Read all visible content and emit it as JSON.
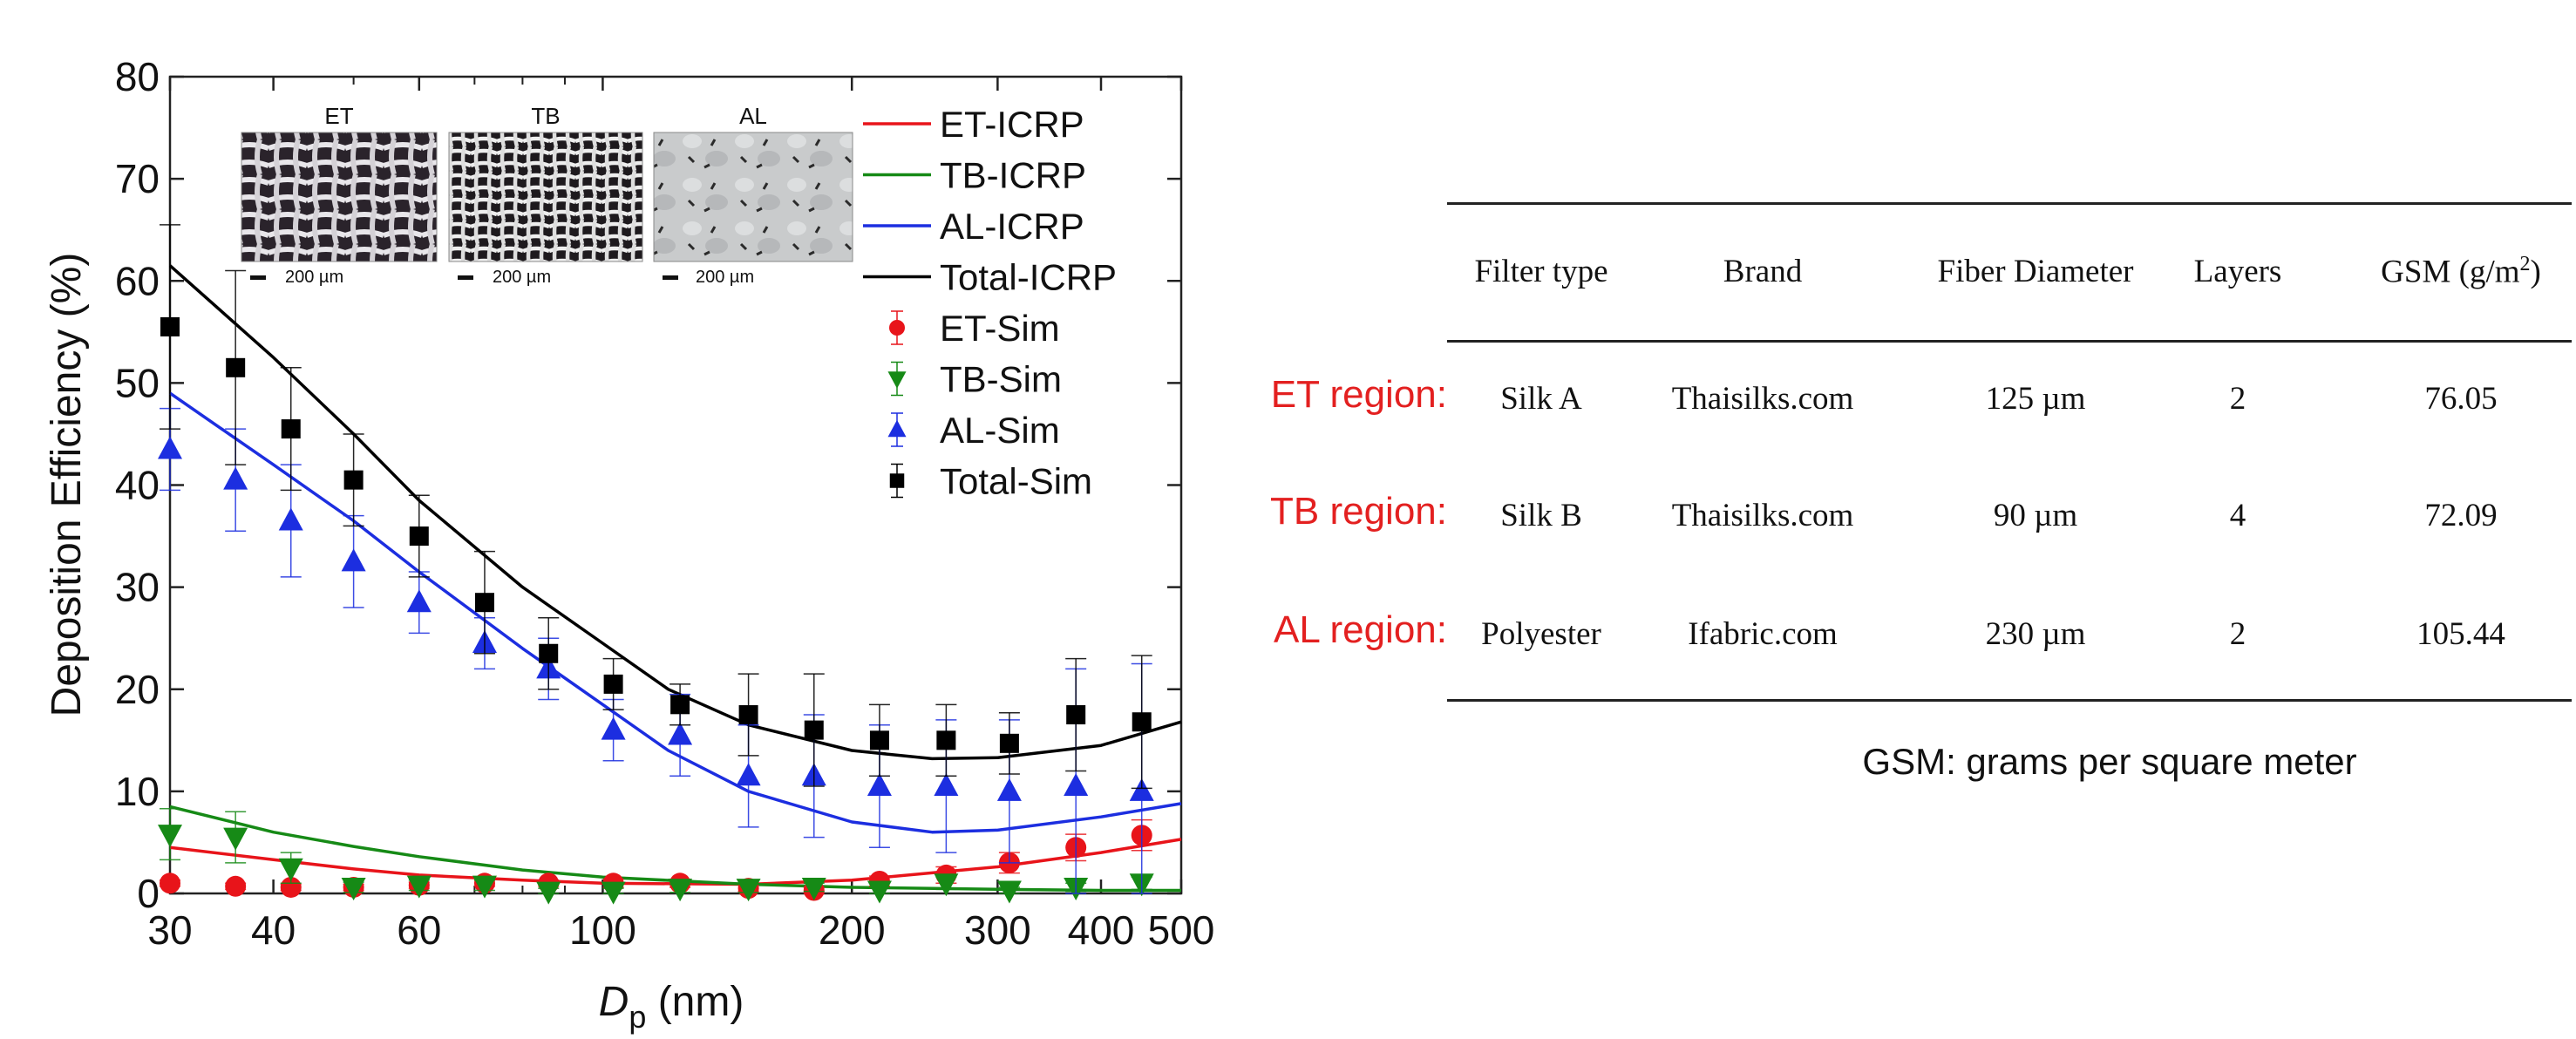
{
  "chart_data": {
    "type": "scatter",
    "xlabel_main": "D",
    "xlabel_sub": "p",
    "xlabel_unit": " (nm)",
    "ylabel": "Deposition Efficiency (%)",
    "xscale": "log",
    "xlim": [
      30,
      500
    ],
    "ylim": [
      0,
      80
    ],
    "xticks": [
      30,
      40,
      60,
      100,
      200,
      300,
      400,
      500
    ],
    "xtick_labels": [
      "30",
      "40",
      "60",
      "100",
      "200",
      "300",
      "400",
      "500"
    ],
    "yticks": [
      0,
      10,
      20,
      30,
      40,
      50,
      60,
      70,
      80
    ],
    "grid": false,
    "legend_position": "top-right",
    "insets": [
      {
        "label": "ET",
        "scale": "200 µm"
      },
      {
        "label": "TB",
        "scale": "200 µm"
      },
      {
        "label": "AL",
        "scale": "200 µm"
      }
    ],
    "lines": [
      {
        "name": "ET-ICRP",
        "color": "#e8141a",
        "x": [
          30,
          40,
          50,
          60,
          80,
          100,
          150,
          200,
          300,
          400,
          500
        ],
        "y": [
          4.5,
          3.3,
          2.4,
          1.8,
          1.3,
          1.0,
          0.9,
          1.3,
          2.6,
          4.0,
          5.3
        ]
      },
      {
        "name": "TB-ICRP",
        "color": "#168a16",
        "x": [
          30,
          40,
          50,
          60,
          80,
          100,
          150,
          200,
          300,
          400,
          500
        ],
        "y": [
          8.5,
          6.0,
          4.6,
          3.6,
          2.3,
          1.6,
          0.9,
          0.6,
          0.4,
          0.3,
          0.3
        ]
      },
      {
        "name": "AL-ICRP",
        "color": "#1c2ee0",
        "x": [
          30,
          40,
          50,
          60,
          80,
          100,
          120,
          150,
          200,
          250,
          300,
          400,
          500
        ],
        "y": [
          49,
          42,
          36.5,
          31.5,
          24,
          18.5,
          14,
          10,
          7.0,
          6.0,
          6.2,
          7.5,
          8.8
        ]
      },
      {
        "name": "Total-ICRP",
        "color": "#000000",
        "x": [
          30,
          40,
          50,
          60,
          80,
          100,
          120,
          150,
          200,
          250,
          300,
          400,
          500
        ],
        "y": [
          61.5,
          52.5,
          45,
          38.5,
          30,
          24.5,
          20,
          16.5,
          14,
          13.2,
          13.3,
          14.5,
          16.8
        ]
      }
    ],
    "series": [
      {
        "name": "ET-Sim",
        "color": "#e8141a",
        "marker": "circle",
        "x": [
          30,
          36,
          42,
          50,
          60,
          72,
          86,
          103,
          124,
          150,
          180,
          216,
          260,
          310,
          373,
          448
        ],
        "y": [
          1.0,
          0.7,
          0.6,
          0.6,
          0.8,
          1.0,
          1.0,
          1.0,
          1.0,
          0.5,
          0.3,
          1.2,
          1.8,
          3.0,
          4.5,
          5.7
        ],
        "err": [
          0.3,
          0.3,
          0.3,
          0.3,
          0.3,
          0.3,
          0.3,
          0.4,
          0.4,
          0.3,
          0.3,
          0.5,
          0.8,
          1.0,
          1.3,
          1.5
        ]
      },
      {
        "name": "TB-Sim",
        "color": "#168a16",
        "marker": "triangle-down",
        "x": [
          30,
          36,
          42,
          50,
          60,
          72,
          86,
          103,
          124,
          150,
          180,
          216,
          260,
          310,
          373,
          448
        ],
        "y": [
          5.8,
          5.5,
          2.5,
          0.6,
          0.8,
          0.8,
          0.2,
          0.2,
          0.5,
          0.5,
          0.6,
          0.3,
          1.0,
          0.3,
          0.6,
          1.0
        ],
        "err": [
          2.5,
          2.5,
          1.5,
          0.5,
          0.5,
          0.5,
          0.3,
          0.3,
          0.4,
          0.4,
          0.4,
          0.3,
          0.6,
          0.3,
          0.4,
          0.6
        ]
      },
      {
        "name": "AL-Sim",
        "color": "#1c2ee0",
        "marker": "triangle-up",
        "x": [
          30,
          36,
          42,
          50,
          60,
          72,
          86,
          103,
          124,
          150,
          180,
          216,
          260,
          310,
          373,
          448
        ],
        "y": [
          43.5,
          40.5,
          36.5,
          32.5,
          28.5,
          24.5,
          22,
          16,
          15.5,
          11.5,
          11.5,
          10.5,
          10.5,
          10,
          10.5,
          10
        ],
        "err": [
          4.0,
          5.0,
          5.5,
          4.5,
          3.0,
          2.5,
          3.0,
          3.0,
          4.0,
          5.0,
          6.0,
          6.0,
          6.5,
          7.0,
          11.5,
          12.5
        ]
      },
      {
        "name": "Total-Sim",
        "color": "#000000",
        "marker": "square",
        "x": [
          30,
          36,
          42,
          50,
          60,
          72,
          86,
          103,
          124,
          150,
          180,
          216,
          260,
          310,
          373,
          448
        ],
        "y": [
          55.5,
          51.5,
          45.5,
          40.5,
          35,
          28.5,
          23.5,
          20.5,
          18.5,
          17.5,
          16,
          15,
          15,
          14.7,
          17.5,
          16.8
        ],
        "err": [
          10.0,
          9.5,
          6.0,
          4.5,
          4.0,
          5.0,
          3.5,
          2.5,
          2.0,
          4.0,
          5.5,
          3.5,
          3.5,
          3.0,
          5.5,
          6.5
        ]
      }
    ]
  },
  "table": {
    "headers": [
      "Filter type",
      "Brand",
      "Fiber Diameter",
      "Layers"
    ],
    "gsm_header": "GSM (g/m",
    "gsm_sup": "2",
    "gsm_close": ")",
    "rows": [
      {
        "region": "ET region:",
        "cells": [
          "Silk A",
          "Thaisilks.com",
          "125 µm",
          "2",
          "76.05"
        ]
      },
      {
        "region": "TB region:",
        "cells": [
          "Silk B",
          "Thaisilks.com",
          "90 µm",
          "4",
          "72.09"
        ]
      },
      {
        "region": "AL region:",
        "cells": [
          "Polyester",
          "Ifabric.com",
          "230 µm",
          "2",
          "105.44"
        ]
      }
    ],
    "note": "GSM: grams per square meter"
  }
}
